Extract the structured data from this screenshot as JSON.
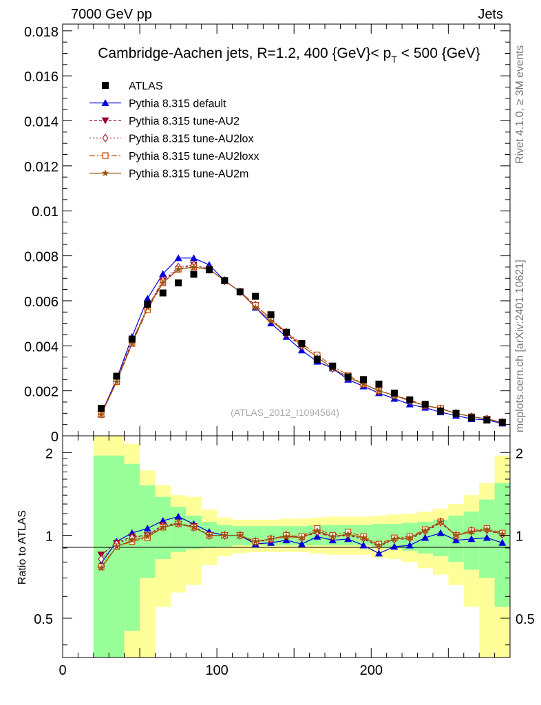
{
  "header": {
    "left": "7000 GeV pp",
    "right": "Jets"
  },
  "side_labels": {
    "rivet": "Rivet 4.1.0, ≥ 3M events",
    "mcplots": "mcplots.cern.ch [arXiv:2401.10621]"
  },
  "chart_data": {
    "type": "line",
    "title": "Cambridge-Aachen jets, R=1.2, 400 {GeV}< p_T < 500 {GeV}",
    "title_parts": {
      "prefix": "Cambridge-Aachen jets, R=1.2, 400 {GeV}< p",
      "sub": "T",
      "suffix": " < 500 {GeV}"
    },
    "analysis_id": "(ATLAS_2012_I1094564)",
    "xlabel": "",
    "ylabel_main": "",
    "ylabel_ratio": "Ratio to ATLAS",
    "xlim": [
      0,
      290
    ],
    "ylim_main": [
      0,
      0.0183
    ],
    "ylim_ratio": [
      0.36,
      2.3
    ],
    "x_ticks": [
      0,
      100,
      200
    ],
    "x_tick_labels": [
      "0",
      "100",
      "200"
    ],
    "y_ticks_main": [
      0,
      0.002,
      0.004,
      0.006,
      0.008,
      0.01,
      0.012,
      0.014,
      0.016,
      0.018
    ],
    "y_tick_labels_main": [
      "0",
      "0.002",
      "0.004",
      "0.006",
      "0.008",
      "0.01",
      "0.012",
      "0.014",
      "0.016",
      "0.018"
    ],
    "y_ticks_ratio": [
      0.5,
      1,
      2
    ],
    "y_tick_labels_ratio": [
      "0.5",
      "1",
      "2"
    ],
    "x": [
      25,
      35,
      45,
      55,
      65,
      75,
      85,
      95,
      105,
      115,
      125,
      135,
      145,
      155,
      165,
      175,
      185,
      195,
      205,
      215,
      225,
      235,
      245,
      255,
      265,
      275,
      285
    ],
    "data": {
      "name": "ATLAS",
      "values": [
        0.00122,
        0.00265,
        0.0043,
        0.00585,
        0.00635,
        0.0068,
        0.00718,
        0.00738,
        0.0069,
        0.0064,
        0.0062,
        0.00538,
        0.0046,
        0.0041,
        0.0034,
        0.0031,
        0.00262,
        0.0025,
        0.0023,
        0.0019,
        0.0016,
        0.0014,
        0.0011,
        0.001,
        0.0008,
        0.0007,
        0.0006
      ]
    },
    "series": [
      {
        "name": "Pythia 8.315 default",
        "color": "#0000dd",
        "marker": "triangle-up",
        "dash": "solid",
        "values": [
          0.00096,
          0.00252,
          0.0044,
          0.0061,
          0.0072,
          0.0079,
          0.0079,
          0.0076,
          0.0069,
          0.0064,
          0.0057,
          0.005,
          0.0044,
          0.0038,
          0.0033,
          0.003,
          0.0025,
          0.0022,
          0.0019,
          0.00165,
          0.0014,
          0.00125,
          0.00105,
          0.0009,
          0.00075,
          0.0007,
          0.00055
        ]
      },
      {
        "name": "Pythia 8.315 tune-AU2",
        "color": "#990033",
        "marker": "triangle-down",
        "dash": "4,3",
        "values": [
          0.00098,
          0.00246,
          0.0042,
          0.0057,
          0.0069,
          0.0074,
          0.0076,
          0.0074,
          0.0069,
          0.0064,
          0.0058,
          0.0052,
          0.0045,
          0.004,
          0.0035,
          0.003,
          0.0026,
          0.0023,
          0.002,
          0.0018,
          0.00155,
          0.00135,
          0.0012,
          0.001,
          0.00085,
          0.00075,
          0.0006
        ]
      },
      {
        "name": "Pythia 8.315 tune-AU2lox",
        "color": "#aa2233",
        "marker": "diamond-open",
        "dash": "2,3",
        "values": [
          0.00097,
          0.00244,
          0.0042,
          0.0057,
          0.0069,
          0.0075,
          0.0076,
          0.0074,
          0.0069,
          0.0064,
          0.0058,
          0.0052,
          0.0046,
          0.004,
          0.0035,
          0.003,
          0.0026,
          0.0023,
          0.002,
          0.0018,
          0.00155,
          0.00135,
          0.0012,
          0.001,
          0.00085,
          0.00075,
          0.0006
        ]
      },
      {
        "name": "Pythia 8.315 tune-AU2loxx",
        "color": "#cc4400",
        "marker": "square-open",
        "dash": "8,3,2,3",
        "values": [
          0.00094,
          0.0024,
          0.0041,
          0.0056,
          0.0068,
          0.0074,
          0.0075,
          0.0074,
          0.0069,
          0.0064,
          0.0058,
          0.0052,
          0.0046,
          0.0041,
          0.0036,
          0.0031,
          0.0027,
          0.0023,
          0.002,
          0.0018,
          0.0016,
          0.00135,
          0.00122,
          0.001,
          0.00085,
          0.00075,
          0.0006
        ]
      },
      {
        "name": "Pythia 8.315 tune-AU2m",
        "color": "#995511",
        "marker": "star",
        "dash": "solid",
        "values": [
          0.00094,
          0.0024,
          0.0041,
          0.0057,
          0.0068,
          0.0074,
          0.0075,
          0.0074,
          0.0069,
          0.0064,
          0.0057,
          0.0051,
          0.0046,
          0.004,
          0.0035,
          0.003,
          0.0026,
          0.0023,
          0.002,
          0.0018,
          0.00155,
          0.00135,
          0.0012,
          0.001,
          0.00085,
          0.00075,
          0.0006
        ]
      }
    ],
    "ratio_series": [
      [
        0.79,
        0.95,
        1.02,
        1.06,
        1.13,
        1.17,
        1.1,
        1.03,
        1.0,
        1.0,
        0.93,
        0.94,
        0.96,
        0.93,
        0.99,
        0.96,
        0.97,
        0.92,
        0.86,
        0.91,
        0.92,
        0.98,
        1.02,
        0.96,
        0.97,
        0.98,
        0.94
      ],
      [
        0.85,
        0.94,
        0.99,
        1.0,
        1.09,
        1.1,
        1.08,
        1.0,
        1.0,
        1.0,
        0.94,
        0.97,
        0.99,
        0.99,
        1.02,
        0.99,
        1.0,
        0.97,
        0.91,
        0.97,
        0.97,
        1.03,
        1.11,
        1.0,
        1.03,
        1.04,
        1.01
      ],
      [
        0.82,
        0.93,
        0.98,
        1.0,
        1.08,
        1.11,
        1.07,
        1.0,
        1.0,
        1.0,
        0.95,
        0.97,
        1.0,
        0.98,
        1.03,
        0.99,
        1.01,
        0.98,
        0.92,
        0.97,
        0.98,
        1.04,
        1.12,
        1.0,
        1.04,
        1.05,
        1.01
      ],
      [
        0.77,
        0.91,
        0.95,
        0.98,
        1.07,
        1.1,
        1.07,
        1.0,
        1.0,
        1.0,
        0.95,
        0.97,
        1.0,
        0.99,
        1.06,
        1.0,
        1.03,
        0.99,
        0.93,
        0.98,
        0.99,
        1.05,
        1.12,
        1.0,
        1.04,
        1.06,
        1.02
      ],
      [
        0.76,
        0.91,
        0.96,
        0.99,
        1.07,
        1.1,
        1.07,
        1.0,
        1.0,
        1.0,
        0.95,
        0.97,
        0.99,
        0.98,
        1.04,
        0.99,
        1.01,
        0.98,
        0.92,
        0.97,
        0.98,
        1.04,
        1.12,
        1.0,
        1.03,
        1.05,
        1.01
      ]
    ],
    "band_edges": [
      20,
      40,
      50,
      60,
      70,
      80,
      90,
      100,
      110,
      120,
      130,
      140,
      150,
      160,
      170,
      180,
      190,
      200,
      210,
      220,
      230,
      240,
      250,
      260,
      270,
      280,
      290
    ],
    "uncertainty_stat": {
      "lower": [
        0.36,
        0.45,
        0.7,
        0.82,
        0.87,
        0.89,
        0.9,
        0.91,
        0.92,
        0.92,
        0.92,
        0.92,
        0.92,
        0.92,
        0.92,
        0.92,
        0.92,
        0.9,
        0.9,
        0.88,
        0.86,
        0.84,
        0.8,
        0.75,
        0.7,
        0.55
      ],
      "upper": [
        1.95,
        1.82,
        1.52,
        1.38,
        1.27,
        1.18,
        1.12,
        1.09,
        1.08,
        1.08,
        1.08,
        1.08,
        1.08,
        1.09,
        1.09,
        1.09,
        1.09,
        1.1,
        1.1,
        1.11,
        1.12,
        1.14,
        1.18,
        1.22,
        1.35,
        1.55
      ]
    },
    "uncertainty_total": {
      "lower": [
        0.36,
        0.36,
        0.36,
        0.55,
        0.62,
        0.66,
        0.78,
        0.84,
        0.86,
        0.87,
        0.87,
        0.87,
        0.87,
        0.86,
        0.85,
        0.85,
        0.85,
        0.83,
        0.82,
        0.8,
        0.76,
        0.72,
        0.66,
        0.55,
        0.36,
        0.36
      ],
      "upper": [
        2.3,
        2.15,
        1.72,
        1.52,
        1.4,
        1.38,
        1.24,
        1.16,
        1.14,
        1.14,
        1.14,
        1.15,
        1.15,
        1.16,
        1.17,
        1.17,
        1.17,
        1.18,
        1.19,
        1.2,
        1.22,
        1.25,
        1.3,
        1.4,
        1.55,
        1.95
      ]
    },
    "band_colors": {
      "stat": "#99ff99",
      "total": "#ffff99"
    },
    "data_color": "#000000"
  }
}
